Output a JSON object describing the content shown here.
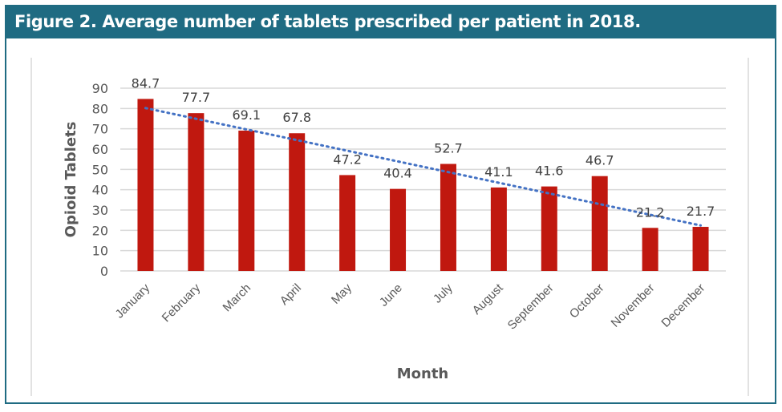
{
  "figure": {
    "title": "Figure 2. Average number of tablets prescribed per patient in 2018."
  },
  "colors": {
    "header": "#1f6b82",
    "bar": "#c0180f",
    "trendline": "#4472c4",
    "grid": "#d9d9d9",
    "text": "#595959"
  },
  "chart_data": {
    "type": "bar",
    "title": "Figure 2. Average number of tablets prescribed per patient in 2018.",
    "xlabel": "Month",
    "ylabel": "Opioid Tablets",
    "categories": [
      "January",
      "February",
      "March",
      "April",
      "May",
      "June",
      "July",
      "August",
      "September",
      "October",
      "November",
      "December"
    ],
    "values": [
      84.7,
      77.7,
      69.1,
      67.8,
      47.2,
      40.4,
      52.7,
      41.1,
      41.6,
      46.7,
      21.2,
      21.7
    ],
    "data_labels": [
      "84.7",
      "77.7",
      "69.1",
      "67.8",
      "47.2",
      "40.4",
      "52.7",
      "41.1",
      "41.6",
      "46.7",
      "21.2",
      "21.7"
    ],
    "ylim": [
      0,
      90
    ],
    "yticks": [
      0,
      10,
      20,
      30,
      40,
      50,
      60,
      70,
      80,
      90
    ],
    "ytick_labels": [
      "0",
      "10",
      "20",
      "30",
      "40",
      "50",
      "60",
      "70",
      "80",
      "90"
    ],
    "grid": true,
    "legend": "none",
    "trendline": {
      "type": "linear",
      "style": "dotted",
      "start": 80.2,
      "end": 22.4
    }
  }
}
